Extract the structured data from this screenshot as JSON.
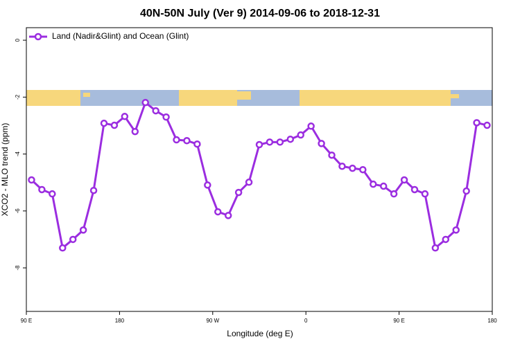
{
  "chart_data": {
    "type": "line",
    "title": "40N-50N July (Ver 9)   2014-09-06 to 2018-12-31",
    "x_label": "Longitude (deg E)",
    "y_label": "XCO2 - MLO trend (ppm)",
    "x": [
      95,
      105,
      115,
      125,
      135,
      145,
      155,
      165,
      175,
      185,
      195,
      205,
      215,
      225,
      235,
      245,
      255,
      265,
      275,
      285,
      295,
      305,
      315,
      325,
      335,
      345,
      355,
      365,
      375,
      385,
      395,
      405,
      415,
      425,
      435,
      445,
      455,
      465,
      475,
      485,
      495,
      505,
      515,
      525,
      535
    ],
    "series": [
      {
        "name": "Land (Nadir&Glint) and Ocean (Glint)",
        "color": "#9b2de0",
        "values": [
          -4.91,
          -5.25,
          -5.4,
          -7.3,
          -7.0,
          -6.67,
          -5.28,
          -2.92,
          -2.99,
          -2.68,
          -3.21,
          -2.19,
          -2.48,
          -2.7,
          -3.5,
          -3.53,
          -3.65,
          -5.09,
          -6.03,
          -6.16,
          -5.35,
          -4.99,
          -3.67,
          -3.58,
          -3.58,
          -3.48,
          -3.33,
          -3.02,
          -3.63,
          -4.04,
          -4.43,
          -4.5,
          -4.55,
          -5.06,
          -5.13,
          -5.4,
          -4.91,
          -5.25,
          -5.4,
          -7.3,
          -7.0,
          -6.67,
          -5.3,
          -2.9,
          -2.99
        ]
      }
    ],
    "xlim": [
      90,
      540
    ],
    "xticks": [
      {
        "value": 90,
        "label": "90 E"
      },
      180,
      {
        "value": 270,
        "label": "90 W"
      },
      {
        "value": 360,
        "label": "0"
      },
      {
        "value": 450,
        "label": "90 E"
      },
      {
        "value": 540,
        "label": "180"
      }
    ],
    "ylim": [
      -9.53,
      0.44
    ],
    "yticks": [
      0,
      -2,
      -4,
      -6,
      -8
    ],
    "legend": "top-left"
  }
}
